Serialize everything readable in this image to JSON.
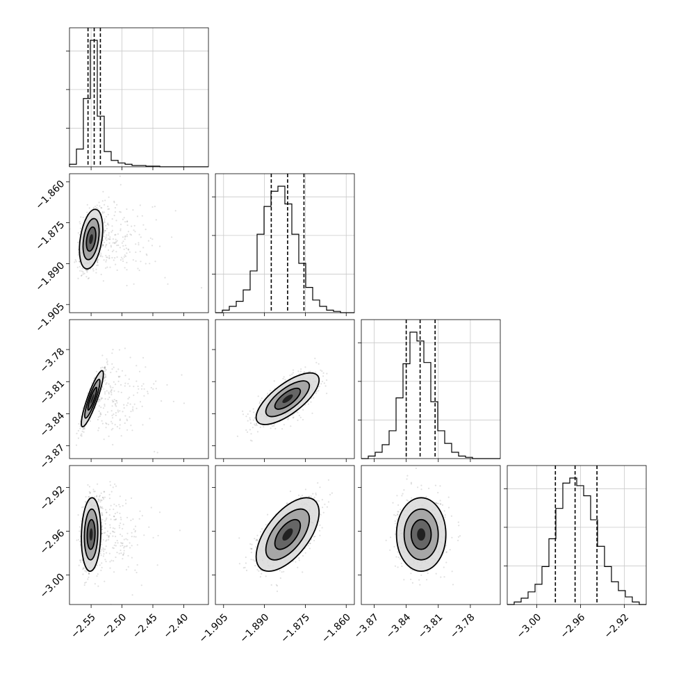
{
  "chart_data": {
    "type": "corner",
    "title": "",
    "grid": true,
    "parameters": [
      {
        "label": "",
        "range": [
          -2.585,
          -2.36
        ],
        "ticks": [
          -2.55,
          -2.5,
          -2.45,
          -2.4
        ],
        "tick_labels": [
          "−2.55",
          "−2.50",
          "−2.45",
          "−2.40"
        ],
        "quantiles": [
          -2.555,
          -2.545,
          -2.535
        ]
      },
      {
        "label": "",
        "range": [
          -1.908,
          -1.857
        ],
        "ticks": [
          -1.905,
          -1.89,
          -1.875,
          -1.86
        ],
        "tick_labels": [
          "−1.905",
          "−1.890",
          "−1.875",
          "−1.860"
        ],
        "quantiles": [
          -1.8875,
          -1.8815,
          -1.8755
        ]
      },
      {
        "label": "",
        "range": [
          -3.882,
          -3.752
        ],
        "ticks": [
          -3.87,
          -3.84,
          -3.81,
          -3.78
        ],
        "tick_labels": [
          "−3.87",
          "−3.84",
          "−3.81",
          "−3.78"
        ],
        "quantiles": [
          -3.84,
          -3.827,
          -3.813
        ]
      },
      {
        "label": "",
        "range": [
          -3.027,
          -2.9
        ],
        "ticks": [
          -3.0,
          -2.96,
          -2.92
        ],
        "tick_labels": [
          "−3.00",
          "−2.96",
          "−2.92"
        ],
        "quantiles": [
          -2.983,
          -2.965,
          -2.945
        ]
      }
    ],
    "histograms": [
      [
        0.02,
        0.14,
        0.54,
        1.0,
        0.4,
        0.12,
        0.05,
        0.03,
        0.02,
        0.01,
        0.01,
        0.005,
        0.005,
        0.0,
        0.0,
        0.0,
        0.0,
        0.0,
        0.0,
        0.0
      ],
      [
        0.0,
        0.02,
        0.05,
        0.09,
        0.18,
        0.33,
        0.62,
        0.84,
        0.96,
        1.0,
        0.86,
        0.62,
        0.39,
        0.2,
        0.1,
        0.05,
        0.02,
        0.01,
        0.0,
        0.0
      ],
      [
        0.0,
        0.02,
        0.05,
        0.11,
        0.22,
        0.48,
        0.75,
        1.0,
        0.93,
        0.76,
        0.45,
        0.22,
        0.12,
        0.05,
        0.02,
        0.01,
        0.0,
        0.0,
        0.0,
        0.0
      ],
      [
        0.0,
        0.02,
        0.05,
        0.1,
        0.16,
        0.3,
        0.52,
        0.76,
        0.96,
        1.0,
        0.94,
        0.86,
        0.67,
        0.46,
        0.3,
        0.18,
        0.11,
        0.06,
        0.02,
        0.0
      ]
    ],
    "density": [
      {
        "row": 1,
        "col": 0,
        "center": [
          -2.55,
          -1.881
        ],
        "sigma": [
          0.009,
          0.0052
        ],
        "corr": 0.35
      },
      {
        "row": 2,
        "col": 0,
        "center": [
          -2.548,
          -3.826
        ],
        "sigma": [
          0.0085,
          0.0125
        ],
        "corr": 0.88
      },
      {
        "row": 2,
        "col": 1,
        "center": [
          -1.8815,
          -3.826
        ],
        "sigma": [
          0.0055,
          0.0115
        ],
        "corr": 0.72
      },
      {
        "row": 3,
        "col": 0,
        "center": [
          -2.55,
          -2.963
        ],
        "sigma": [
          0.0075,
          0.016
        ],
        "corr": 0.1
      },
      {
        "row": 3,
        "col": 1,
        "center": [
          -1.8815,
          -2.963
        ],
        "sigma": [
          0.0055,
          0.016
        ],
        "corr": 0.6
      },
      {
        "row": 3,
        "col": 2,
        "center": [
          -3.826,
          -2.963
        ],
        "sigma": [
          0.011,
          0.016
        ],
        "corr": 0.0
      }
    ]
  }
}
